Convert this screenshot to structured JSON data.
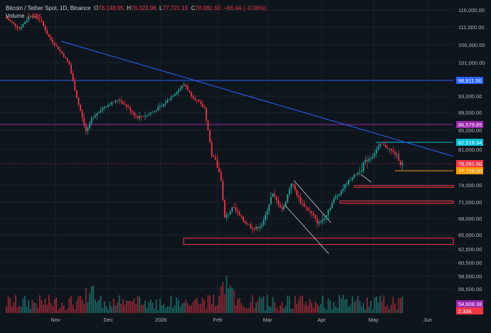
{
  "header": {
    "symbol": "Bitcoin / Tether Spot, 1D, Binance",
    "o_label": "O",
    "o_value": "78,148.05",
    "h_label": "H",
    "h_value": "78,323.96",
    "l_label": "L",
    "l_value": "77,721.19",
    "c_label": "C",
    "c_value": "78,081.60",
    "change": "−66.44 (−0.09%)",
    "volume_label": "Volume",
    "volume_value": "2.33K"
  },
  "chart_data": {
    "type": "candlestick",
    "y_ticks": [
      "116,000.00",
      "111,000.00",
      "106,000.00",
      "101,000.00",
      "93,000.00",
      "89,000.00",
      "85,000.00",
      "81,000.00",
      "74,000.00",
      "71,000.00",
      "68,000.00",
      "65,000.00",
      "62,500.00",
      "60,500.00",
      "58,500.00",
      "56,500.00"
    ],
    "y_tick_values": [
      116000,
      111000,
      106000,
      101000,
      93000,
      89000,
      85000,
      81000,
      74000,
      71000,
      68000,
      65000,
      62500,
      60500,
      58500,
      56500
    ],
    "x_ticks": [
      "Nov",
      "Dec",
      "2026",
      "Feb",
      "Mar",
      "Apr",
      "May",
      "Jun"
    ],
    "price_labels": [
      {
        "text": "96,911.50",
        "value": 96911.5,
        "color": "#2962ff"
      },
      {
        "text": "86,579.85",
        "value": 86579.85,
        "color": "#9c27b0"
      },
      {
        "text": "82,518.34",
        "value": 82518.34,
        "color": "#00bcd4"
      },
      {
        "text": "78,081.60",
        "value": 78081.6,
        "color": "#f23645"
      },
      {
        "text": "77,729.00",
        "value": 77729,
        "color": "#ff9800"
      },
      {
        "text": "54,608.38",
        "value": 54608.38,
        "color": "#9c27b0"
      },
      {
        "text": "2.33K",
        "color": "#f23645"
      }
    ],
    "horizontal_lines": [
      {
        "value": 96911.5,
        "color": "#2962ff"
      },
      {
        "value": 86579.85,
        "color": "#9c27b0"
      }
    ],
    "support_zones": [
      {
        "from": 73900,
        "to": 73600,
        "color": "#f23645"
      },
      {
        "from": 71200,
        "to": 70800,
        "color": "#f23645"
      },
      {
        "from": 64400,
        "to": 63300,
        "color": "#f23645"
      }
    ],
    "trendline": {
      "from_month": "Nov",
      "from_price": 107000,
      "to_month": "Jun",
      "to_price": 79600,
      "color": "#2962ff"
    },
    "current_price": 78081.6,
    "colors": {
      "up": "#26a69a",
      "down": "#f23645",
      "background": "#0f151d",
      "grid": "#1c222b",
      "text": "#b2b5be"
    }
  }
}
